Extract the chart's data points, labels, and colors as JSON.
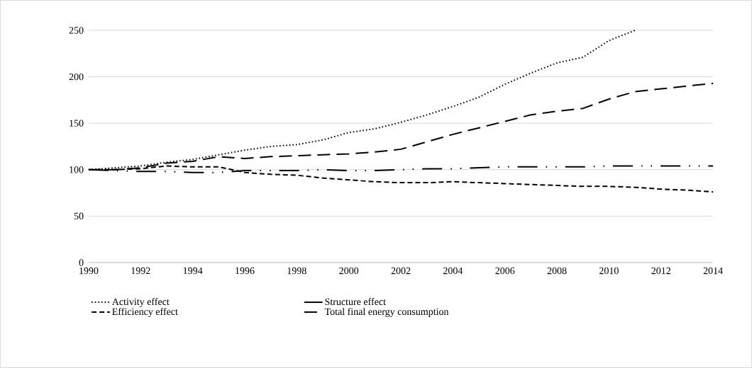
{
  "chart_data": {
    "type": "line",
    "x": [
      1990,
      1991,
      1992,
      1993,
      1994,
      1995,
      1996,
      1997,
      1998,
      1999,
      2000,
      2001,
      2002,
      2003,
      2004,
      2005,
      2006,
      2007,
      2008,
      2009,
      2010,
      2011,
      2012,
      2013,
      2014
    ],
    "series": [
      {
        "name": "Activity effect",
        "color": "#000000",
        "line_style": "dotted",
        "values": [
          100,
          102,
          104,
          108,
          111,
          116,
          121,
          125,
          127,
          132,
          140,
          144,
          151,
          159,
          168,
          178,
          192,
          204,
          215,
          221,
          239,
          250,
          null,
          null,
          null
        ]
      },
      {
        "name": "Structure effect",
        "color": "#000000",
        "line_style": "dashdotdot",
        "values": [
          100,
          99,
          98,
          98,
          97,
          97,
          99,
          99,
          99,
          100,
          99,
          99,
          100,
          101,
          101,
          102,
          103,
          103,
          103,
          103,
          104,
          104,
          104,
          104,
          104
        ]
      },
      {
        "name": "Efficiency effect",
        "color": "#000000",
        "line_style": "dashed",
        "values": [
          100,
          100,
          101,
          104,
          103,
          103,
          97,
          95,
          94,
          91,
          89,
          87,
          86,
          86,
          87,
          86,
          85,
          84,
          83,
          82,
          82,
          81,
          79,
          78,
          76
        ]
      },
      {
        "name": "Total final energy consumption",
        "color": "#000000",
        "line_style": "longdash",
        "values": [
          100,
          100,
          102,
          107,
          109,
          114,
          112,
          114,
          115,
          116,
          117,
          119,
          122,
          130,
          138,
          145,
          152,
          159,
          163,
          166,
          176,
          184,
          187,
          190,
          193
        ]
      }
    ],
    "xlim": [
      1990,
      2014
    ],
    "xticks": [
      1990,
      1992,
      1994,
      1996,
      1998,
      2000,
      2002,
      2004,
      2006,
      2008,
      2010,
      2012,
      2014
    ],
    "ylim": [
      0,
      250
    ],
    "yticks": [
      0,
      50,
      100,
      150,
      200,
      250
    ],
    "grid": "y",
    "legend": "bottom",
    "marker": "none"
  }
}
